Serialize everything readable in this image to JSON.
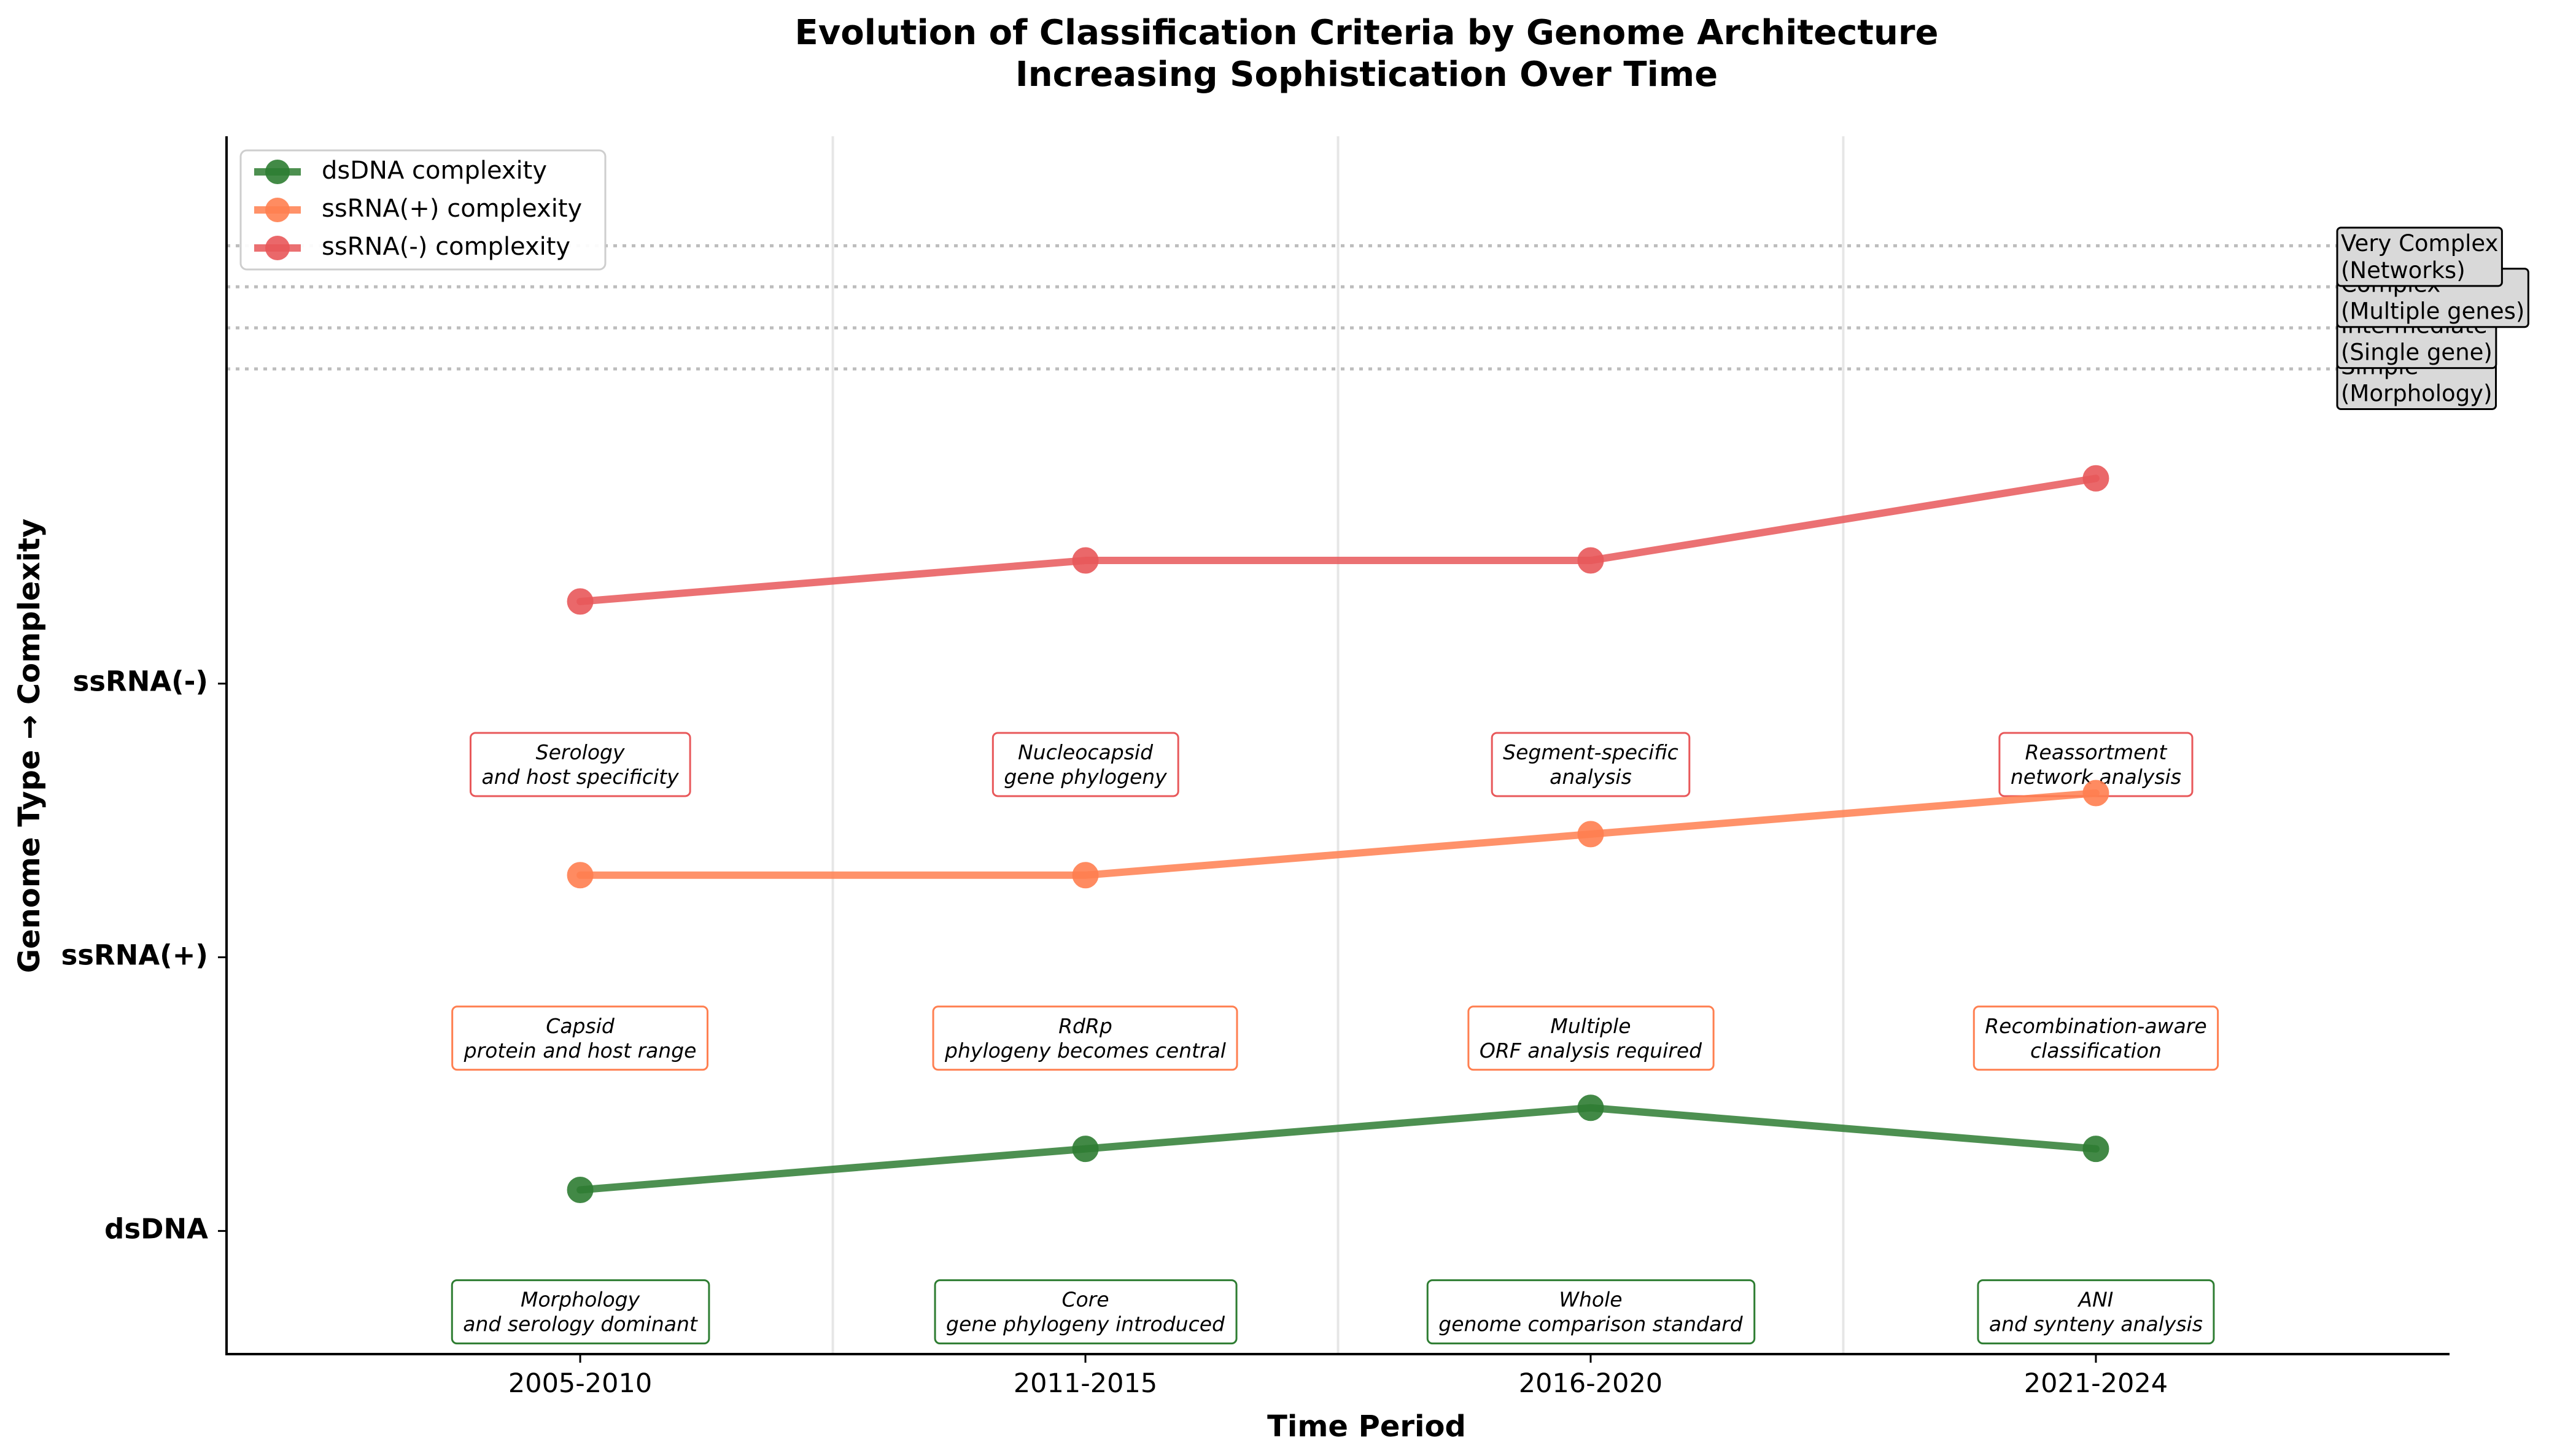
{
  "chart_data": {
    "type": "line",
    "title": "Evolution of Classification Criteria by Genome Architecture",
    "subtitle": "Increasing Sophistication Over Time",
    "xlabel": "Time Period",
    "ylabel": "Genome Type → Complexity",
    "categories": [
      "2005-2010",
      "2011-2015",
      "2016-2020",
      "2021-2024"
    ],
    "y_ticks": [
      "dsDNA",
      "ssRNA(+)",
      "ssRNA(-)"
    ],
    "series": [
      {
        "name": "dsDNA complexity",
        "color": "#2e7d32",
        "base": 0,
        "values": [
          1,
          2,
          3,
          2
        ],
        "annotations": [
          "Morphology\nand serology dominant",
          "Core\ngene phylogeny introduced",
          "Whole\ngenome comparison standard",
          "ANI\nand synteny analysis"
        ]
      },
      {
        "name": "ssRNA(+) complexity",
        "color": "#ff7f50",
        "base": 1,
        "values": [
          2,
          2,
          3,
          4
        ],
        "annotations": [
          "Capsid\nprotein and host range",
          "RdRp\nphylogeny becomes central",
          "Multiple\nORF analysis required",
          "Recombination-aware\nclassification"
        ]
      },
      {
        "name": "ssRNA(-) complexity",
        "color": "#e8585a",
        "base": 2,
        "values": [
          2,
          3,
          3,
          5
        ],
        "annotations": [
          "Serology\nand host specificity",
          "Nucleocapsid\ngene phylogeny",
          "Segment-specific\nanalysis",
          "Reassortment\nnetwork analysis"
        ]
      }
    ],
    "complexity_levels": [
      {
        "value": 1,
        "label": "Simple\n(Morphology)"
      },
      {
        "value": 2,
        "label": "Intermediate\n(Single gene)"
      },
      {
        "value": 3,
        "label": "Complex\n(Multiple genes)"
      },
      {
        "value": 4,
        "label": "Very Complex\n(Networks)"
      }
    ],
    "complexity_scale": 0.15,
    "level_lines_offset": 3,
    "ylim": [
      -0.45,
      4
    ],
    "x_padding": 0.7,
    "legend_position": "upper left",
    "grid_x": true,
    "grid_y": false
  }
}
